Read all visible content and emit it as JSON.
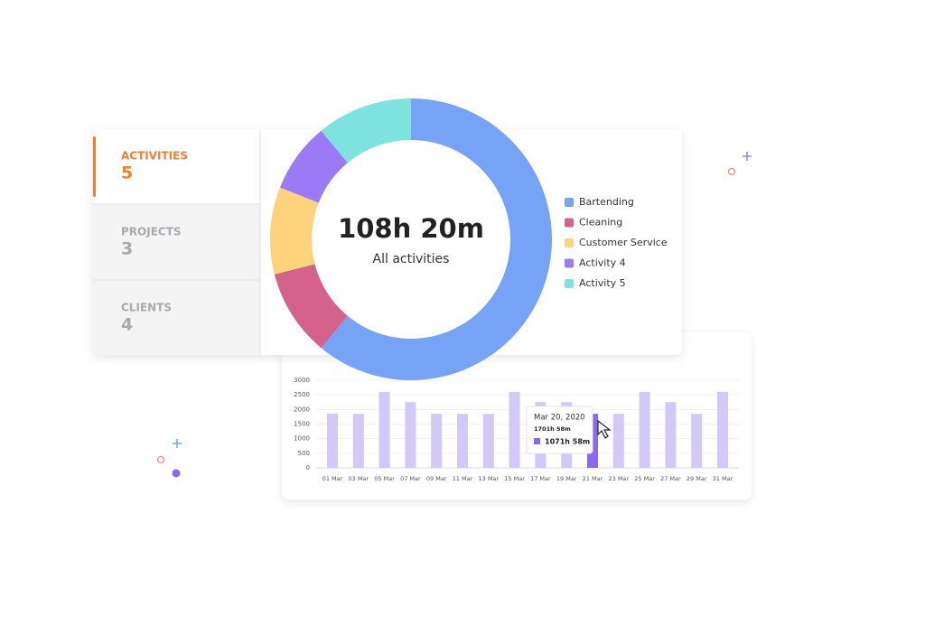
{
  "tabs": [
    {
      "label": "ACTIVITIES",
      "count": 5
    },
    {
      "label": "PROJECTS",
      "count": 3
    },
    {
      "label": "CLIENTS",
      "count": 4
    }
  ],
  "chart_data": [
    {
      "type": "pie",
      "center_title": "108h 20m",
      "center_subtitle": "All activities",
      "series": [
        {
          "name": "Bartending",
          "color": "#76a3f6",
          "values": [
            61
          ]
        },
        {
          "name": "Cleaning",
          "color": "#d4628a",
          "values": [
            10
          ]
        },
        {
          "name": "Customer Service",
          "color": "#fcd27a",
          "values": [
            10
          ]
        },
        {
          "name": "Activity 4",
          "color": "#9b7af5",
          "values": [
            8
          ]
        },
        {
          "name": "Activity 5",
          "color": "#7ee2de",
          "values": [
            11
          ]
        }
      ]
    },
    {
      "type": "bar",
      "categories": [
        "01 Mar",
        "03 Mar",
        "05 Mar",
        "07 Mar",
        "09 Mar",
        "11 Mar",
        "13 Mar",
        "15 Mar",
        "17 Mar",
        "19 Mar",
        "21 Mar",
        "23 Mar",
        "25 Mar",
        "27 Mar",
        "29 Mar",
        "31 Mar"
      ],
      "values": [
        1850,
        1850,
        2600,
        2250,
        1850,
        1850,
        1850,
        2600,
        2250,
        2250,
        1850,
        1850,
        2600,
        2250,
        1850,
        2600
      ],
      "colors": [
        "#d3c9f8",
        "#d3c9f8",
        "#d3c9f8",
        "#d3c9f8",
        "#d3c9f8",
        "#d3c9f8",
        "#d3c9f8",
        "#d3c9f8",
        "#d3c9f8",
        "#d3c9f8",
        "#8c68ef",
        "#d3c9f8",
        "#d3c9f8",
        "#d3c9f8",
        "#d3c9f8",
        "#d3c9f8"
      ],
      "ylim": [
        0,
        3000
      ],
      "yticks": [
        0,
        500,
        1000,
        1500,
        2000,
        2500,
        3000
      ],
      "grid": true,
      "tooltip": {
        "date": "Mar 20, 2020",
        "line1": "1701h 58m",
        "line2": "1071h 58m"
      }
    }
  ]
}
